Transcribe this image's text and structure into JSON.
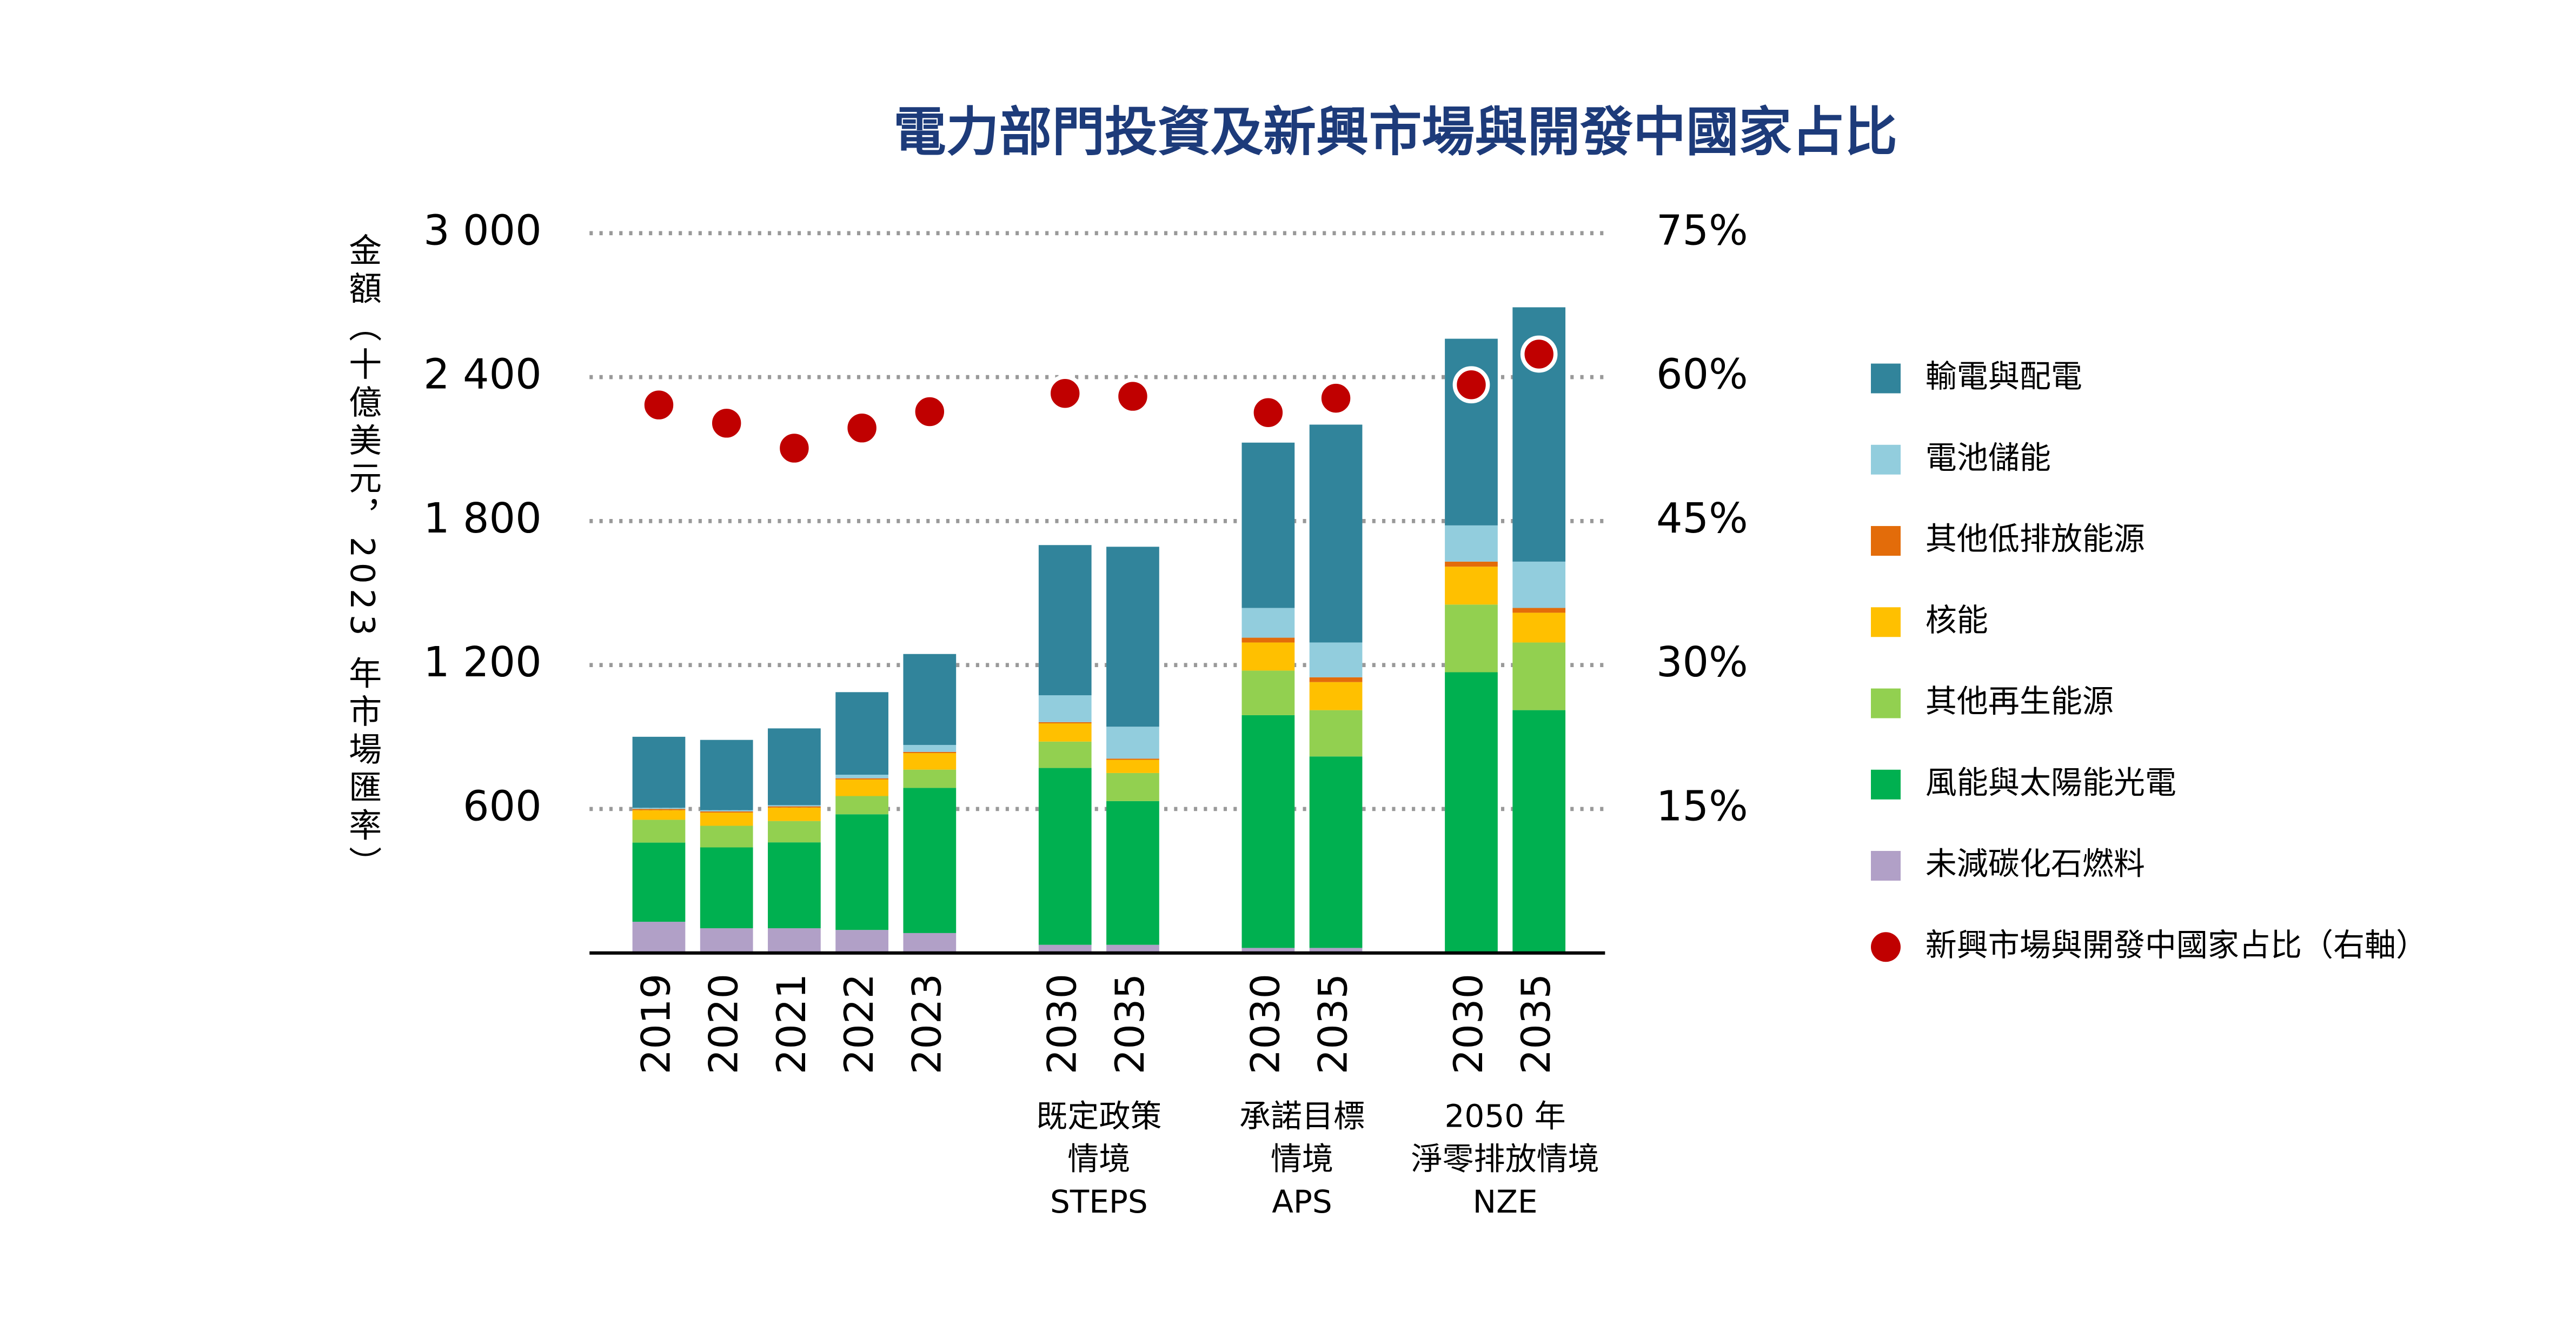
{
  "chart_data": {
    "type": "bar",
    "title": "電力部門投資及新興市場與開發中國家占比",
    "y_label": "金額（十億美元，2023 年市場匯率）",
    "groups": [
      {
        "categories": [
          "2019",
          "2020",
          "2021",
          "2022",
          "2023"
        ]
      },
      {
        "categories": [
          "2030",
          "2035"
        ],
        "lines": [
          "既定政策",
          "情境",
          "STEPS"
        ]
      },
      {
        "categories": [
          "2030",
          "2035"
        ],
        "lines": [
          "承諾目標",
          "情境",
          "APS"
        ]
      },
      {
        "categories": [
          "2030",
          "2035"
        ],
        "lines": [
          "2050 年",
          "淨零排放情境",
          "NZE"
        ]
      }
    ],
    "stacked": true,
    "series": [
      {
        "name": "未減碳化石燃料",
        "color": "#b1a0c7",
        "values": [
          130,
          103,
          103,
          96,
          83,
          34,
          34,
          21,
          21,
          0,
          0
        ]
      },
      {
        "name": "風能與太陽能光電",
        "color": "#00b050",
        "values": [
          330,
          337,
          358,
          482,
          605,
          737,
          599,
          970,
          798,
          1170,
          1012
        ]
      },
      {
        "name": "其他再生能源",
        "color": "#92d050",
        "values": [
          95,
          90,
          89,
          76,
          76,
          110,
          117,
          186,
          193,
          282,
          282
        ]
      },
      {
        "name": "核能",
        "color": "#ffc000",
        "values": [
          40,
          55,
          56,
          69,
          69,
          76,
          55,
          117,
          117,
          158,
          124
        ]
      },
      {
        "name": "其他低排放能源",
        "color": "#e36c0a",
        "values": [
          5,
          5,
          5,
          5,
          5,
          5,
          5,
          20,
          20,
          21,
          20
        ]
      },
      {
        "name": "電池儲能",
        "color": "#92cddd",
        "values": [
          5,
          5,
          5,
          15,
          29,
          112,
          133,
          124,
          145,
          151,
          193
        ]
      },
      {
        "name": "輸電與配電",
        "color": "#31849b",
        "values": [
          296,
          293,
          320,
          344,
          379,
          626,
          750,
          689,
          908,
          778,
          1060
        ]
      },
      {
        "name": "新興市場與開發中國家占比（右軸）",
        "type": "scatter",
        "axis": "y2",
        "color": "#c00000",
        "values": [
          57.1,
          55.2,
          52.6,
          54.7,
          56.4,
          58.3,
          58.0,
          56.3,
          57.8,
          59.2,
          62.4
        ]
      }
    ],
    "ylim": [
      0,
      3000
    ],
    "yticks": [
      {
        "value": 600,
        "label": "600"
      },
      {
        "value": 1200,
        "label": "1 200"
      },
      {
        "value": 1800,
        "label": "1 800"
      },
      {
        "value": 2400,
        "label": "2 400"
      },
      {
        "value": 3000,
        "label": "3 000"
      }
    ],
    "y2lim": [
      0,
      75
    ],
    "y2ticks": [
      {
        "value": 15,
        "label": "15%"
      },
      {
        "value": 30,
        "label": "30%"
      },
      {
        "value": 45,
        "label": "45%"
      },
      {
        "value": 60,
        "label": "60%"
      },
      {
        "value": 75,
        "label": "75%"
      }
    ],
    "grid": true
  }
}
